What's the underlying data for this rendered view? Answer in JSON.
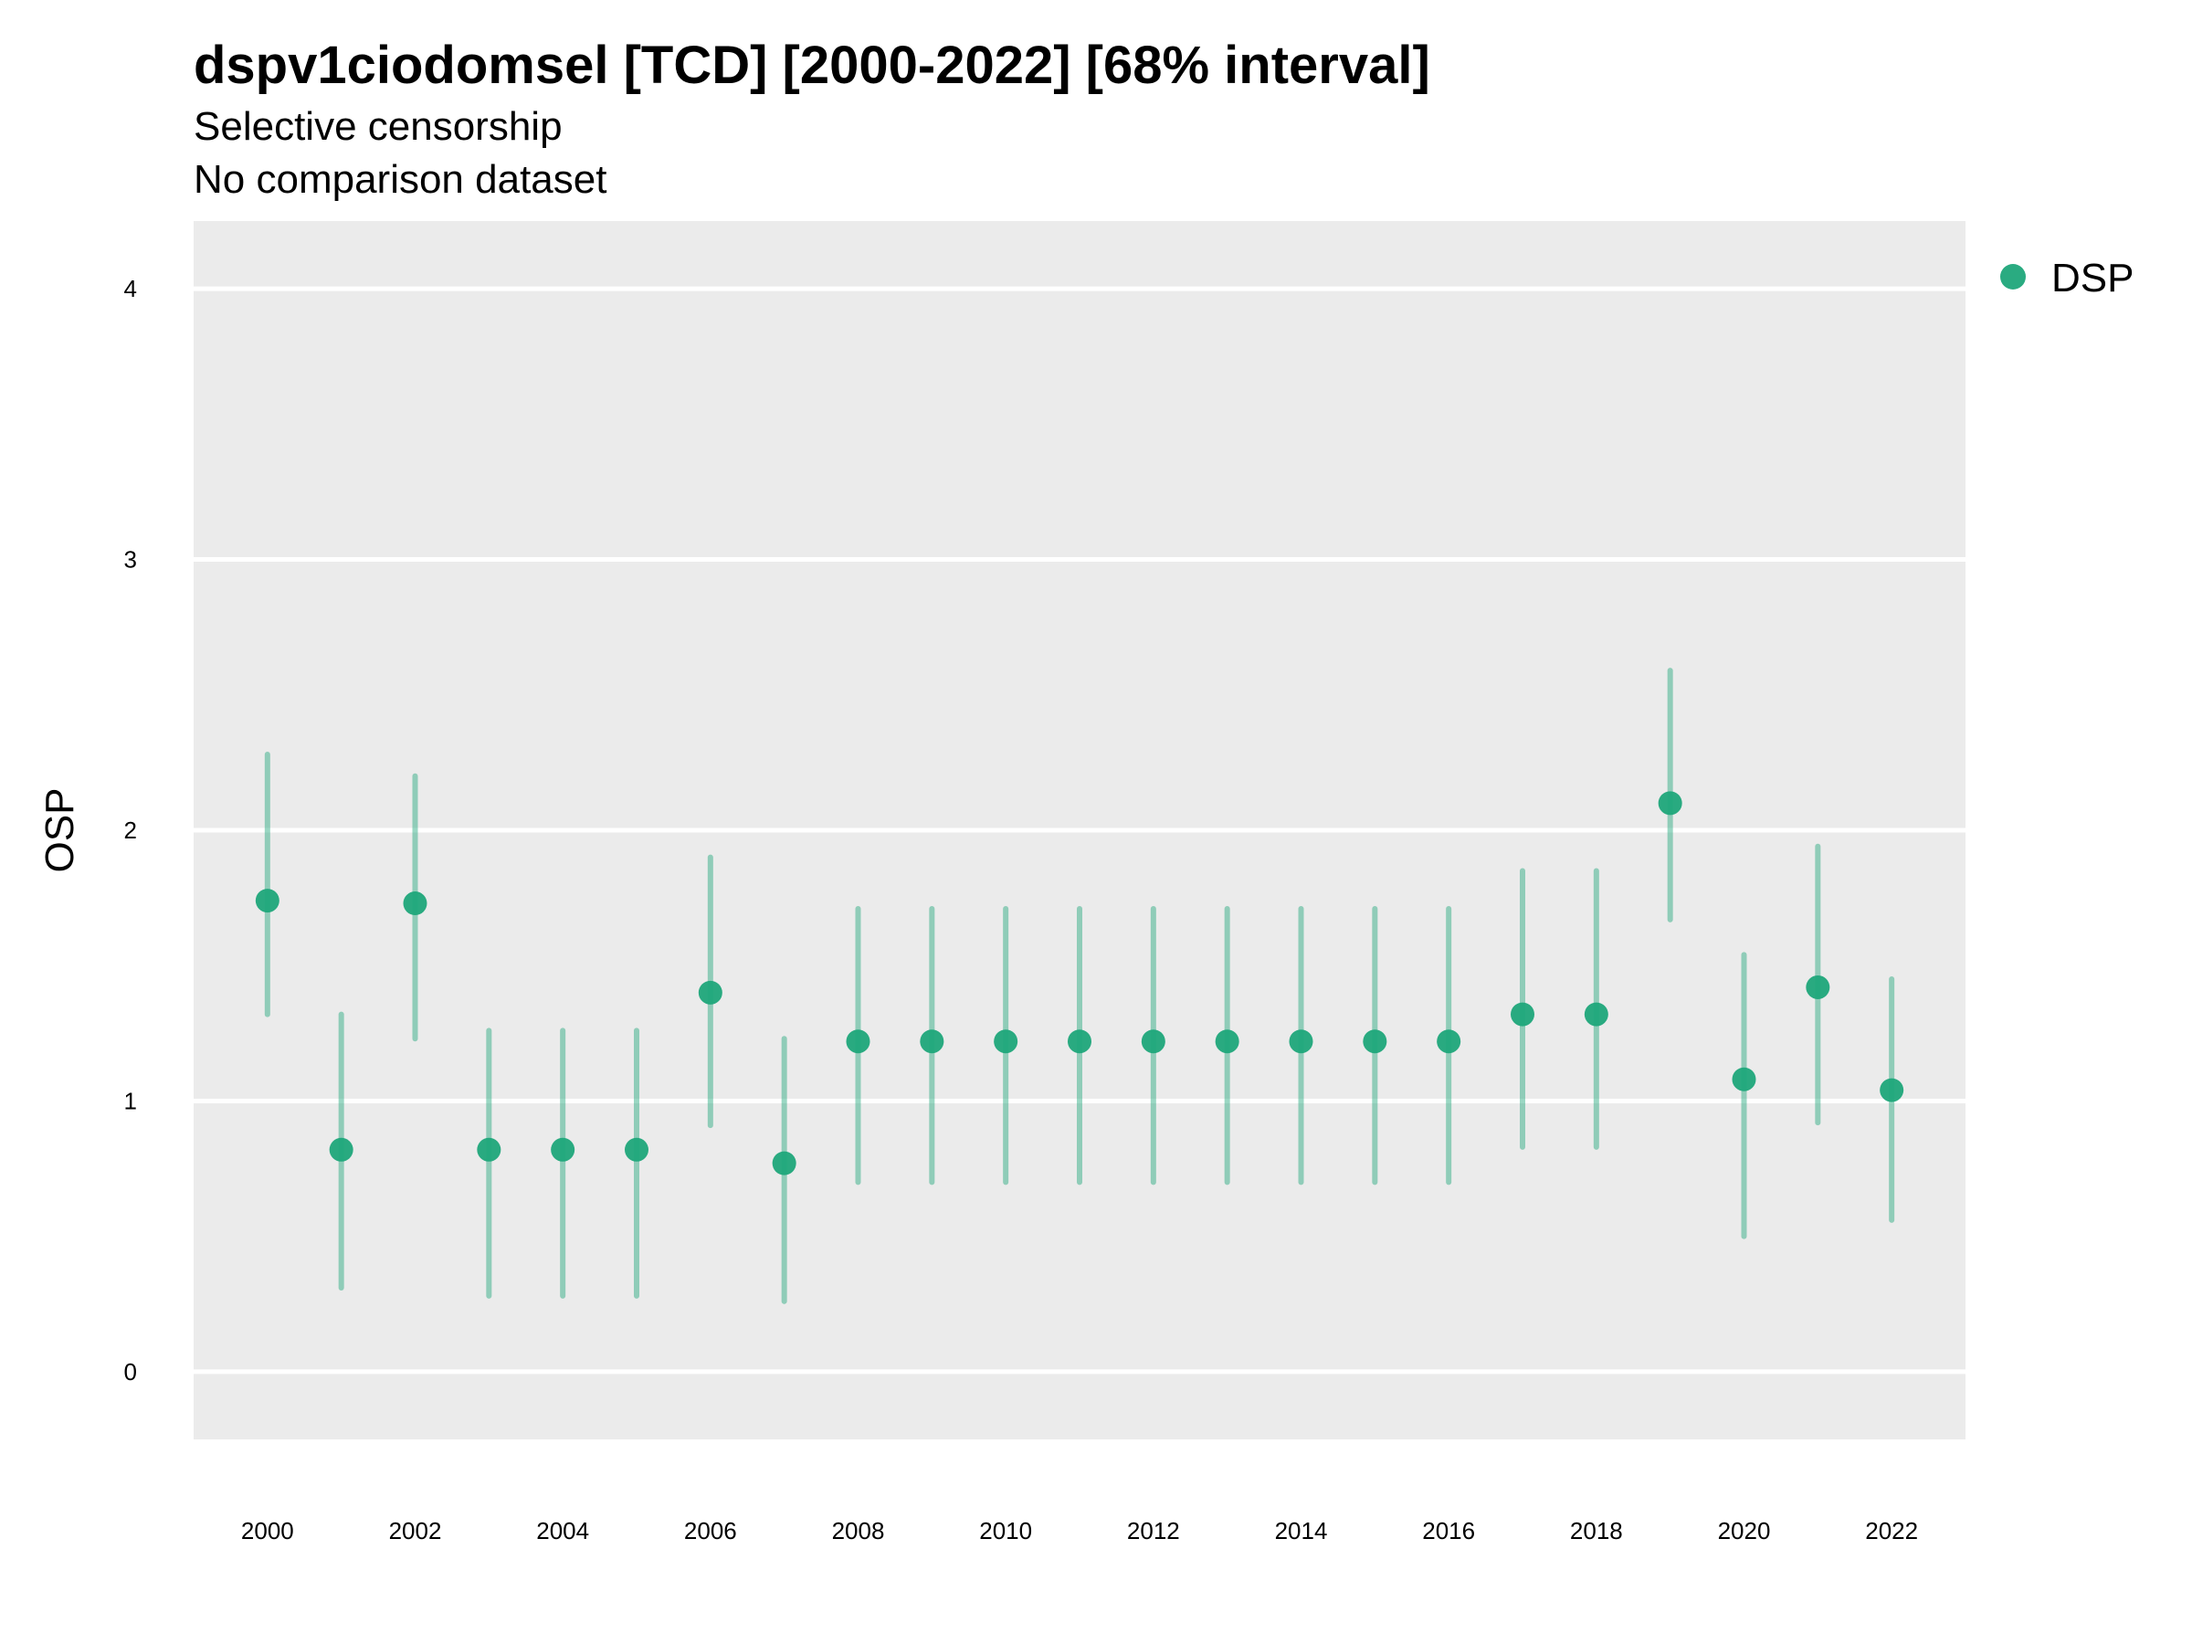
{
  "chart_data": {
    "type": "scatter",
    "title": "dspv1ciodomsel [TCD] [2000-2022] [68% interval]",
    "subtitle": [
      "Selective censorship",
      "No comparison dataset"
    ],
    "xlabel": "",
    "ylabel": "OSP",
    "xlim": [
      1999,
      2023
    ],
    "ylim": [
      -0.25,
      4.25
    ],
    "x_ticks": [
      2000,
      2002,
      2004,
      2006,
      2008,
      2010,
      2012,
      2014,
      2016,
      2018,
      2020,
      2022
    ],
    "y_ticks": [
      0,
      1,
      2,
      3,
      4
    ],
    "grid": true,
    "legend": "right",
    "series": [
      {
        "name": "DSP",
        "color": "#1fa67a",
        "x": [
          2000,
          2001,
          2002,
          2003,
          2004,
          2005,
          2006,
          2007,
          2008,
          2009,
          2010,
          2011,
          2012,
          2013,
          2014,
          2015,
          2016,
          2017,
          2018,
          2019,
          2020,
          2021,
          2022
        ],
        "y": [
          1.74,
          0.82,
          1.73,
          0.82,
          0.82,
          0.82,
          1.4,
          0.77,
          1.22,
          1.22,
          1.22,
          1.22,
          1.22,
          1.22,
          1.22,
          1.22,
          1.22,
          1.32,
          1.32,
          2.1,
          1.08,
          1.42,
          1.04
        ],
        "lower": [
          1.32,
          0.31,
          1.23,
          0.28,
          0.28,
          0.28,
          0.91,
          0.26,
          0.7,
          0.7,
          0.7,
          0.7,
          0.7,
          0.7,
          0.7,
          0.7,
          0.7,
          0.83,
          0.83,
          1.67,
          0.5,
          0.92,
          0.56
        ],
        "upper": [
          2.28,
          1.32,
          2.2,
          1.26,
          1.26,
          1.26,
          1.9,
          1.23,
          1.71,
          1.71,
          1.71,
          1.71,
          1.71,
          1.71,
          1.71,
          1.71,
          1.71,
          1.85,
          1.85,
          2.59,
          1.54,
          1.94,
          1.45
        ]
      }
    ]
  }
}
